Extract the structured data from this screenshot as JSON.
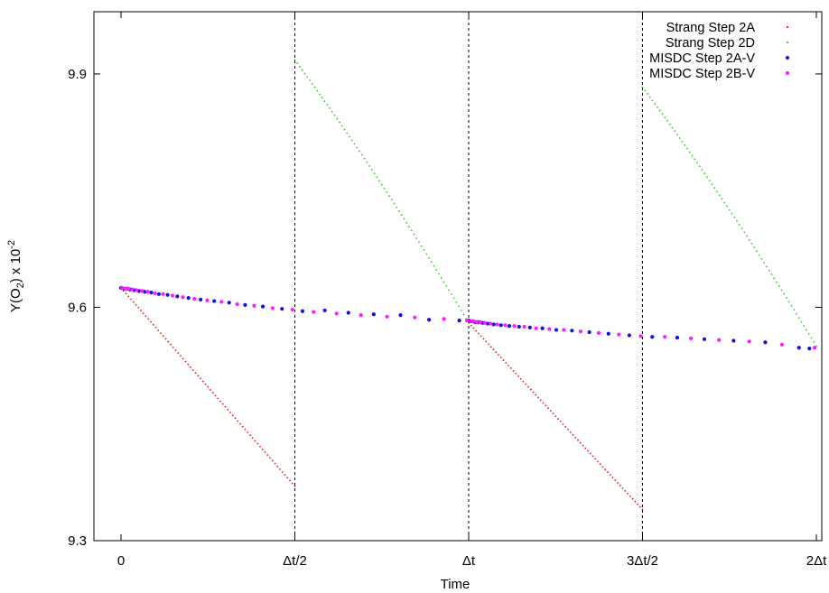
{
  "chart_data": {
    "type": "scatter",
    "title": "",
    "xlabel": "Time",
    "ylabel": {
      "base": "Y(O",
      "sub": "2",
      "mid": ") x 10",
      "sup": "-2"
    },
    "xlim": [
      0,
      2
    ],
    "ylim": [
      9.3,
      9.98
    ],
    "x_ticks": [
      {
        "value": 0,
        "label": "0"
      },
      {
        "value": 0.5,
        "label": "Δt/2"
      },
      {
        "value": 1,
        "label": "Δt"
      },
      {
        "value": 1.5,
        "label": "3Δt/2"
      },
      {
        "value": 2,
        "label": "2Δt"
      }
    ],
    "y_ticks": [
      {
        "value": 9.3,
        "label": "9.3"
      },
      {
        "value": 9.6,
        "label": "9.6"
      },
      {
        "value": 9.9,
        "label": "9.9"
      }
    ],
    "vertical_lines": [
      0.5,
      1,
      1.5
    ],
    "grid": false,
    "legend_position": "top-right",
    "series": [
      {
        "name": "Strang Step 2A",
        "color": "#e41a1c",
        "marker": "tiny-dot",
        "segments": [
          {
            "x0": 0,
            "y0": 9.625,
            "x1": 0.5,
            "y1": 9.37,
            "curvature": 0
          },
          {
            "x0": 1,
            "y0": 9.58,
            "x1": 1.5,
            "y1": 9.34,
            "curvature": 0
          }
        ]
      },
      {
        "name": "Strang Step 2D",
        "color": "#2ecc1f",
        "marker": "tiny-dot",
        "segments": [
          {
            "x0": 0.5,
            "y0": 9.918,
            "x1": 1,
            "y1": 9.58,
            "curvature": 0.035
          },
          {
            "x0": 1.5,
            "y0": 9.883,
            "x1": 2,
            "y1": 9.55,
            "curvature": 0.035
          }
        ]
      },
      {
        "name": "MISDC Step 2A-V",
        "color": "#1010e0",
        "marker": "dot",
        "points": [
          [
            0.0,
            9.625
          ],
          [
            0.008,
            9.624
          ],
          [
            0.016,
            9.624
          ],
          [
            0.026,
            9.623
          ],
          [
            0.038,
            9.622
          ],
          [
            0.052,
            9.621
          ],
          [
            0.068,
            9.62
          ],
          [
            0.087,
            9.619
          ],
          [
            0.109,
            9.617
          ],
          [
            0.134,
            9.616
          ],
          [
            0.162,
            9.614
          ],
          [
            0.194,
            9.612
          ],
          [
            0.229,
            9.61
          ],
          [
            0.268,
            9.608
          ],
          [
            0.311,
            9.606
          ],
          [
            0.357,
            9.603
          ],
          [
            0.408,
            9.601
          ],
          [
            0.463,
            9.598
          ],
          [
            0.522,
            9.595
          ],
          [
            0.586,
            9.596
          ],
          [
            0.654,
            9.593
          ],
          [
            0.727,
            9.591
          ],
          [
            0.804,
            9.59
          ],
          [
            0.886,
            9.584
          ],
          [
            0.973,
            9.583
          ],
          [
            1.0,
            9.583
          ],
          [
            1.004,
            9.582
          ],
          [
            1.01,
            9.582
          ],
          [
            1.018,
            9.581
          ],
          [
            1.028,
            9.581
          ],
          [
            1.04,
            9.58
          ],
          [
            1.055,
            9.579
          ],
          [
            1.072,
            9.578
          ],
          [
            1.093,
            9.577
          ],
          [
            1.117,
            9.576
          ],
          [
            1.145,
            9.575
          ],
          [
            1.176,
            9.574
          ],
          [
            1.212,
            9.573
          ],
          [
            1.252,
            9.571
          ],
          [
            1.297,
            9.57
          ],
          [
            1.347,
            9.568
          ],
          [
            1.402,
            9.566
          ],
          [
            1.462,
            9.564
          ],
          [
            1.528,
            9.562
          ],
          [
            1.6,
            9.561
          ],
          [
            1.678,
            9.559
          ],
          [
            1.762,
            9.557
          ],
          [
            1.853,
            9.555
          ],
          [
            1.95,
            9.548
          ],
          [
            1.98,
            9.547
          ]
        ]
      },
      {
        "name": "MISDC Step 2B-V",
        "color": "#ff1cff",
        "marker": "dot",
        "points": [
          [
            0.003,
            9.625
          ],
          [
            0.012,
            9.624
          ],
          [
            0.021,
            9.624
          ],
          [
            0.032,
            9.623
          ],
          [
            0.045,
            9.622
          ],
          [
            0.06,
            9.621
          ],
          [
            0.077,
            9.62
          ],
          [
            0.098,
            9.618
          ],
          [
            0.121,
            9.617
          ],
          [
            0.148,
            9.615
          ],
          [
            0.178,
            9.613
          ],
          [
            0.211,
            9.611
          ],
          [
            0.248,
            9.609
          ],
          [
            0.289,
            9.607
          ],
          [
            0.334,
            9.604
          ],
          [
            0.383,
            9.602
          ],
          [
            0.436,
            9.599
          ],
          [
            0.493,
            9.597
          ],
          [
            0.554,
            9.594
          ],
          [
            0.62,
            9.592
          ],
          [
            0.69,
            9.59
          ],
          [
            0.765,
            9.588
          ],
          [
            0.845,
            9.587
          ],
          [
            0.929,
            9.585
          ],
          [
            0.995,
            9.583
          ],
          [
            1.007,
            9.582
          ],
          [
            1.014,
            9.582
          ],
          [
            1.023,
            9.581
          ],
          [
            1.034,
            9.581
          ],
          [
            1.047,
            9.58
          ],
          [
            1.063,
            9.579
          ],
          [
            1.082,
            9.578
          ],
          [
            1.105,
            9.577
          ],
          [
            1.131,
            9.576
          ],
          [
            1.16,
            9.575
          ],
          [
            1.194,
            9.573
          ],
          [
            1.232,
            9.572
          ],
          [
            1.274,
            9.571
          ],
          [
            1.322,
            9.569
          ],
          [
            1.374,
            9.567
          ],
          [
            1.432,
            9.565
          ],
          [
            1.495,
            9.563
          ],
          [
            1.564,
            9.562
          ],
          [
            1.639,
            9.56
          ],
          [
            1.72,
            9.558
          ],
          [
            1.807,
            9.556
          ],
          [
            1.901,
            9.552
          ],
          [
            1.995,
            9.548
          ]
        ]
      }
    ]
  }
}
